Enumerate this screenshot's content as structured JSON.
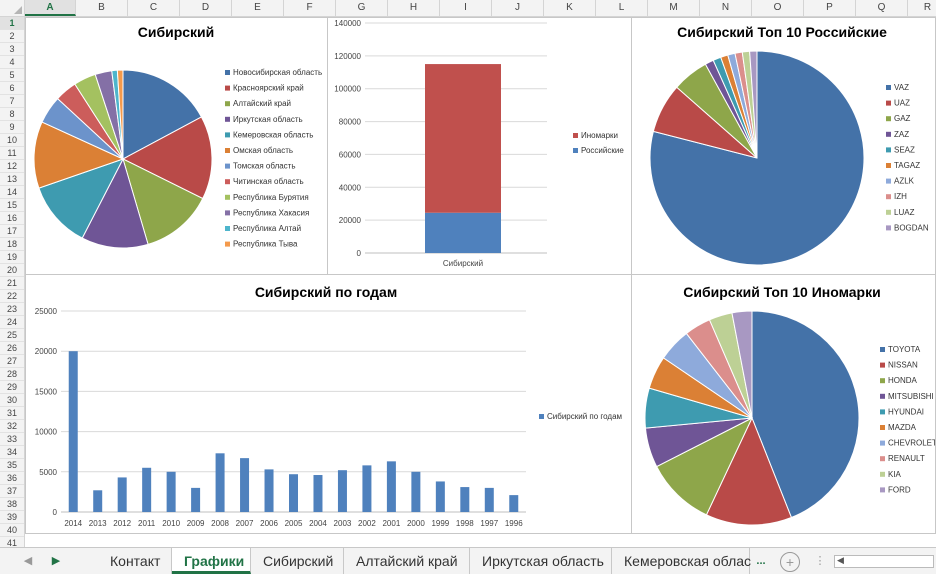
{
  "columns": [
    "A",
    "B",
    "C",
    "D",
    "E",
    "F",
    "G",
    "H",
    "I",
    "J",
    "K",
    "L",
    "M",
    "N",
    "O",
    "P",
    "Q",
    "R"
  ],
  "rows": [
    "1",
    "2",
    "3",
    "4",
    "5",
    "6",
    "7",
    "8",
    "9",
    "10",
    "11",
    "12",
    "13",
    "14",
    "15",
    "16",
    "17",
    "18",
    "19",
    "20",
    "21",
    "22",
    "23",
    "24",
    "25",
    "26",
    "27",
    "28",
    "29",
    "30",
    "31",
    "32",
    "33",
    "34",
    "35",
    "36",
    "37",
    "38",
    "39",
    "40",
    "41"
  ],
  "selected_column": "A",
  "selected_row": "1",
  "tabs": [
    "Контакт",
    "Графики",
    "Сибирский",
    "Алтайский край",
    "Иркутская область",
    "Кемеровская облас"
  ],
  "active_tab": "Графики",
  "tab_overflow": "...",
  "add_sheet_icon": "plus-circle-icon",
  "chart_data": [
    {
      "type": "pie",
      "title": "Сибирский",
      "legend_position": "right",
      "categories": [
        "Новосибирская область",
        "Красноярский край",
        "Алтайский край",
        "Иркутская область",
        "Кемеровская область",
        "Омская область",
        "Томская область",
        "Читинская область",
        "Республика Бурятия",
        "Республика Хакасия",
        "Республика Алтай",
        "Республика Тыва"
      ],
      "values": [
        17,
        15,
        13,
        12,
        12,
        12,
        5,
        4,
        4,
        3,
        1,
        1
      ],
      "colors": [
        "#4472a8",
        "#b94a48",
        "#8ea64a",
        "#6f5596",
        "#3e9bb0",
        "#db8035",
        "#6c93cb",
        "#cc5d5b",
        "#a4c160",
        "#8470a6",
        "#4eb5cc",
        "#f49a4c"
      ]
    },
    {
      "type": "bar",
      "stacked": true,
      "categories": [
        "Сибирский"
      ],
      "series": [
        {
          "name": "Российские",
          "values": [
            24500
          ],
          "color": "#4f81bd"
        },
        {
          "name": "Иномарки",
          "values": [
            90500
          ],
          "color": "#c0504d"
        }
      ],
      "ylim": [
        0,
        140000
      ],
      "yticks": [
        "0",
        "20000",
        "40000",
        "60000",
        "80000",
        "100000",
        "120000",
        "140000"
      ],
      "legend_position": "right",
      "grid": true
    },
    {
      "type": "pie",
      "title": "Сибирский Топ 10 Российские",
      "legend_position": "right",
      "categories": [
        "VAZ",
        "UAZ",
        "GAZ",
        "ZAZ",
        "SEAZ",
        "TAGAZ",
        "AZLK",
        "IZH",
        "LUAZ",
        "BOGDAN"
      ],
      "values": [
        79,
        7.5,
        5.5,
        1.3,
        1.2,
        1.1,
        1.1,
        1.1,
        1.1,
        1.1
      ],
      "colors": [
        "#4472a8",
        "#b94a48",
        "#8ea64a",
        "#6f5596",
        "#3e9bb0",
        "#db8035",
        "#8eaadb",
        "#db8e8c",
        "#bdd095",
        "#a898c2"
      ]
    },
    {
      "type": "bar",
      "title": "Сибирский по годам",
      "legend_position": "right",
      "categories": [
        "2014",
        "2013",
        "2012",
        "2011",
        "2010",
        "2009",
        "2008",
        "2007",
        "2006",
        "2005",
        "2004",
        "2003",
        "2002",
        "2001",
        "2000",
        "1999",
        "1998",
        "1997",
        "1996"
      ],
      "series": [
        {
          "name": "Сибирский по годам",
          "values": [
            20000,
            2700,
            4300,
            5500,
            5000,
            3000,
            7300,
            6700,
            5300,
            4700,
            4600,
            5200,
            5800,
            6300,
            5000,
            3800,
            3100,
            3000,
            2100
          ],
          "color": "#4f81bd"
        }
      ],
      "ylim": [
        0,
        25000
      ],
      "yticks": [
        "0",
        "5000",
        "10000",
        "15000",
        "20000",
        "25000"
      ],
      "grid": true
    },
    {
      "type": "pie",
      "title": "Сибирский Топ 10 Иномарки",
      "legend_position": "right",
      "categories": [
        "TOYOTA",
        "NISSAN",
        "HONDA",
        "MITSUBISHI",
        "HYUNDAI",
        "MAZDA",
        "CHEVROLET",
        "RENAULT",
        "KIA",
        "FORD"
      ],
      "values": [
        44,
        13,
        10.5,
        6,
        6,
        5,
        5,
        4,
        3.5,
        3
      ],
      "colors": [
        "#4472a8",
        "#b94a48",
        "#8ea64a",
        "#6f5596",
        "#3e9bb0",
        "#db8035",
        "#8eaadb",
        "#db8e8c",
        "#bdd095",
        "#a898c2"
      ]
    }
  ]
}
